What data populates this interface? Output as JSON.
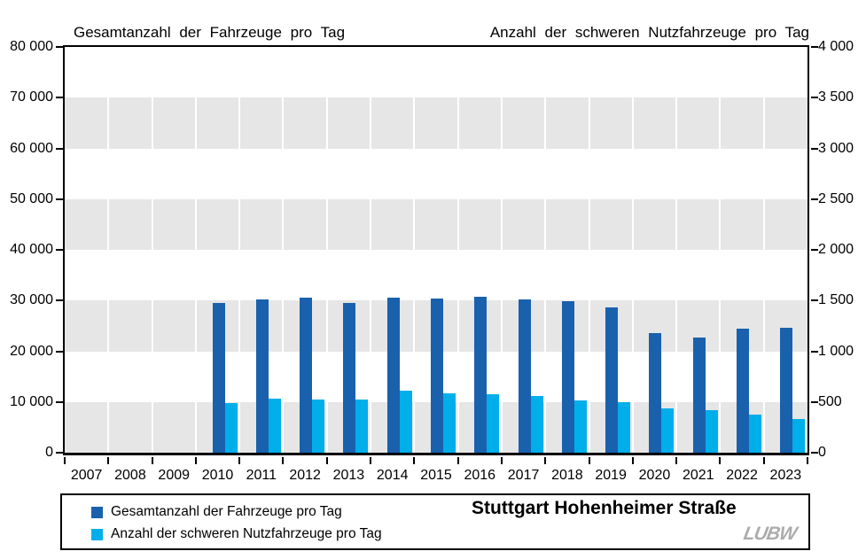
{
  "chart_data": {
    "type": "bar",
    "title_left": "Gesamtanzahl der Fahrzeuge pro Tag",
    "title_right": "Anzahl der schweren Nutzfahrzeuge pro Tag",
    "categories": [
      "2007",
      "2008",
      "2009",
      "2010",
      "2011",
      "2012",
      "2013",
      "2014",
      "2015",
      "2016",
      "2017",
      "2018",
      "2019",
      "2020",
      "2021",
      "2022",
      "2023"
    ],
    "series": [
      {
        "name": "Gesamtanzahl der Fahrzeuge pro Tag",
        "axis": "left",
        "color": "#1961AC",
        "values": [
          0,
          0,
          0,
          29600,
          30300,
          30600,
          29500,
          30600,
          30400,
          30700,
          30200,
          29900,
          28600,
          23500,
          22700,
          24500,
          24700
        ]
      },
      {
        "name": "Anzahl der schweren Nutzfahrzeuge pro Tag",
        "axis": "right",
        "color": "#00AEEA",
        "values": [
          0,
          0,
          0,
          485,
          535,
          520,
          520,
          610,
          585,
          575,
          555,
          515,
          495,
          440,
          420,
          375,
          335
        ]
      }
    ],
    "left_axis": {
      "min": 0,
      "max": 80000,
      "step": 10000,
      "tick_labels": [
        "80 000",
        "70 000",
        "60 000",
        "50 000",
        "40 000",
        "30 000",
        "20 000",
        "10 000",
        "0"
      ]
    },
    "right_axis": {
      "min": 0,
      "max": 4000,
      "step": 500,
      "tick_labels": [
        "4 000",
        "3 500",
        "3 000",
        "2 500",
        "2 000",
        "1 500",
        "1 000",
        "500",
        "0"
      ]
    },
    "grid": {
      "band_color": "#E6E6E6",
      "bands_on_value_ranges": [
        [
          0,
          10000
        ],
        [
          20000,
          30000
        ],
        [
          40000,
          50000
        ],
        [
          60000,
          70000
        ]
      ]
    },
    "legend": {
      "station": "Stuttgart Hohenheimer Straße",
      "logo_text": "LUBW"
    }
  }
}
